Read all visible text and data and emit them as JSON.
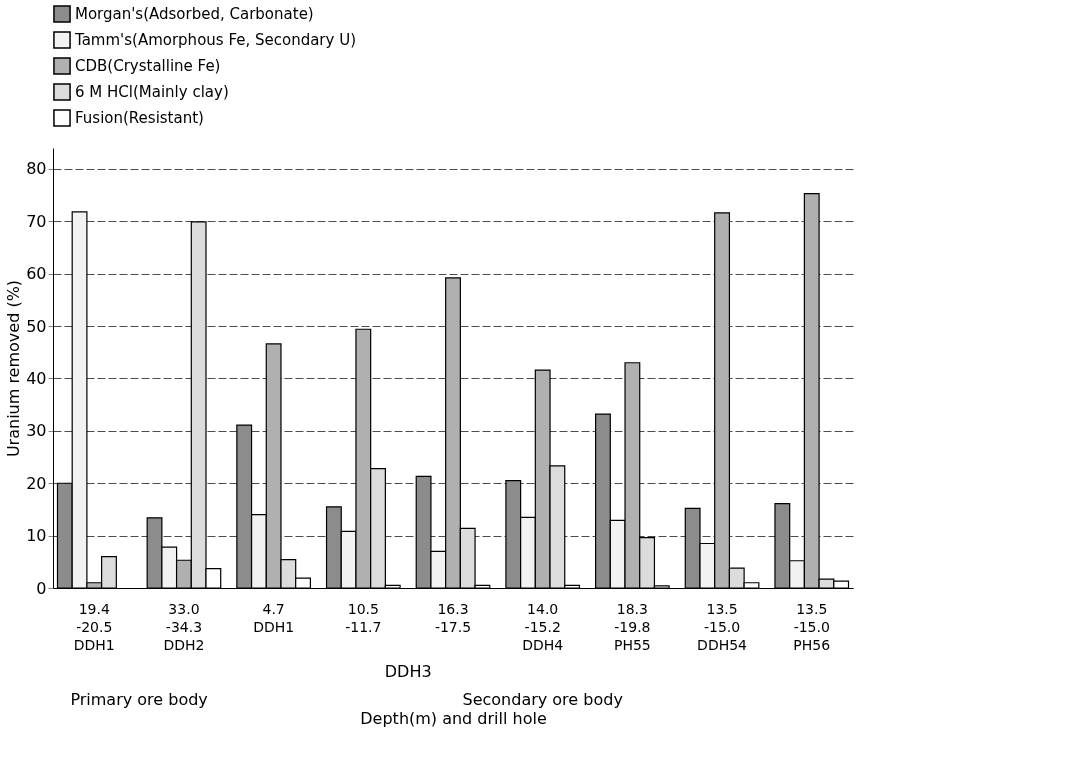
{
  "chart_data": {
    "type": "bar",
    "xlabel": "Depth(m) and drill hole",
    "ylabel": "Uranium removed (%)",
    "categories": [
      "19.4\n-20.5\n\nDDH1",
      "33.0\n-34.3\n\nDDH2",
      "4.7\n\n\nDDH1",
      "10.5\n-11.7",
      "16.3\n-17.5",
      "14.0\n-15.2\n\nDDH4",
      "18.3\n-19.8\n\nPH55",
      "13.5\n-15.0\n\nDDH54",
      "13.5\n-15.0\n\nPH56"
    ],
    "series": [
      {
        "name": "Morgan's(Adsorbed, Carbonate)",
        "color": "#8c8c8c",
        "values": [
          20,
          13.4,
          31.1,
          15.5,
          21.3,
          20.5,
          33.2,
          15.2,
          16.1
        ]
      },
      {
        "name": "Tamm's(Amorphous Fe, Secondary U)",
        "color": "#f2f2f2",
        "values": [
          71.8,
          7.8,
          14,
          10.8,
          7,
          13.5,
          12.9,
          8.5,
          5.2
        ]
      },
      {
        "name": "CDB(Crystalline Fe)",
        "color": "#b0b0b0",
        "values": [
          1,
          5.3,
          46.6,
          49.4,
          59.2,
          41.6,
          43,
          71.6,
          75.3
        ]
      },
      {
        "name": "6 M HCl(Mainly clay)",
        "color": "#dcdcdc",
        "values": [
          6,
          69.9,
          5.4,
          22.8,
          11.4,
          23.3,
          9.6,
          3.8,
          1.7
        ]
      },
      {
        "name": "Fusion(Resistant)",
        "color": "#ffffff",
        "values": [
          0,
          3.7,
          1.9,
          0.5,
          0.5,
          0.5,
          0.4,
          1,
          1.3
        ]
      }
    ],
    "annotations": [
      "DDH3",
      "Primary ore body",
      "Secondary ore body"
    ],
    "ylim": [
      0,
      84
    ],
    "yticks": [
      0,
      10,
      20,
      30,
      40,
      50,
      60,
      70,
      80
    ],
    "grid": "y",
    "legend": "top"
  }
}
